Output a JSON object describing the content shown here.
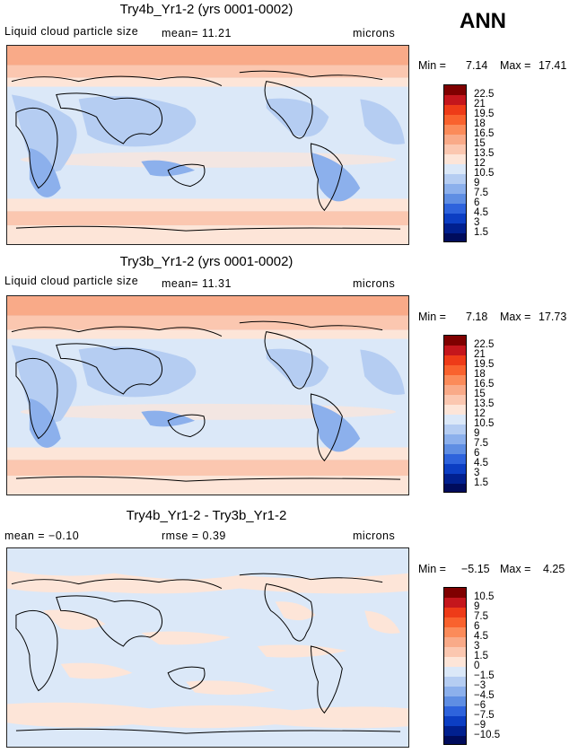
{
  "header": {
    "season": "ANN"
  },
  "panels": [
    {
      "title": "Try4b_Yr1-2 (yrs 0001-0002)",
      "variable": "Liquid cloud particle size",
      "stat_text": "mean=  11.21",
      "units": "microns",
      "min_label": "Min =",
      "min_value": "7.14",
      "max_label": "Max =",
      "max_value": "17.41",
      "colorbar_labels": [
        "22.5",
        "21",
        "19.5",
        "18",
        "16.5",
        "15",
        "13.5",
        "12",
        "10.5",
        "9",
        "7.5",
        "6",
        "4.5",
        "3",
        "1.5"
      ]
    },
    {
      "title": "Try3b_Yr1-2 (yrs 0001-0002)",
      "variable": "Liquid cloud particle size",
      "stat_text": "mean=  11.31",
      "units": "microns",
      "min_label": "Min =",
      "min_value": "7.18",
      "max_label": "Max =",
      "max_value": "17.73",
      "colorbar_labels": [
        "22.5",
        "21",
        "19.5",
        "18",
        "16.5",
        "15",
        "13.5",
        "12",
        "10.5",
        "9",
        "7.5",
        "6",
        "4.5",
        "3",
        "1.5"
      ]
    },
    {
      "title": "Try4b_Yr1-2 - Try3b_Yr1-2",
      "variable": "mean =  −0.10",
      "stat_text": "rmse =   0.39",
      "units": "microns",
      "min_label": "Min =",
      "min_value": "−5.15",
      "max_label": "Max =",
      "max_value": "4.25",
      "colorbar_labels": [
        "10.5",
        "9",
        "7.5",
        "6",
        "4.5",
        "3",
        "1.5",
        "0",
        "−1.5",
        "−3",
        "−4.5",
        "−6",
        "−7.5",
        "−9",
        "−10.5"
      ]
    }
  ],
  "chart_data": {
    "type": "heatmap",
    "colors": [
      "#7f0000",
      "#c4161c",
      "#ee3b18",
      "#f9622e",
      "#fb8b5a",
      "#f9aa88",
      "#fbc7b0",
      "#fde5d8",
      "#dbe8f8",
      "#b5cdf2",
      "#8cb0ec",
      "#5f8ee3",
      "#2e63dc",
      "#0c3ec3",
      "#01208f",
      "#000c5c"
    ],
    "maps": [
      {
        "title": "Try4b_Yr1-2 (yrs 0001-0002)",
        "mean": 11.21,
        "min": 7.14,
        "max": 17.41,
        "levels": [
          1.5,
          3,
          4.5,
          6,
          7.5,
          9,
          10.5,
          12,
          13.5,
          15,
          16.5,
          18,
          19.5,
          21,
          22.5
        ]
      },
      {
        "title": "Try3b_Yr1-2 (yrs 0001-0002)",
        "mean": 11.31,
        "min": 7.18,
        "max": 17.73,
        "levels": [
          1.5,
          3,
          4.5,
          6,
          7.5,
          9,
          10.5,
          12,
          13.5,
          15,
          16.5,
          18,
          19.5,
          21,
          22.5
        ]
      },
      {
        "title": "Try4b_Yr1-2 - Try3b_Yr1-2",
        "mean": -0.1,
        "rmse": 0.39,
        "min": -5.15,
        "max": 4.25,
        "levels": [
          -10.5,
          -9,
          -7.5,
          -6,
          -4.5,
          -3,
          -1.5,
          0,
          1.5,
          3,
          4.5,
          6,
          7.5,
          9,
          10.5
        ]
      }
    ],
    "units": "microns"
  }
}
